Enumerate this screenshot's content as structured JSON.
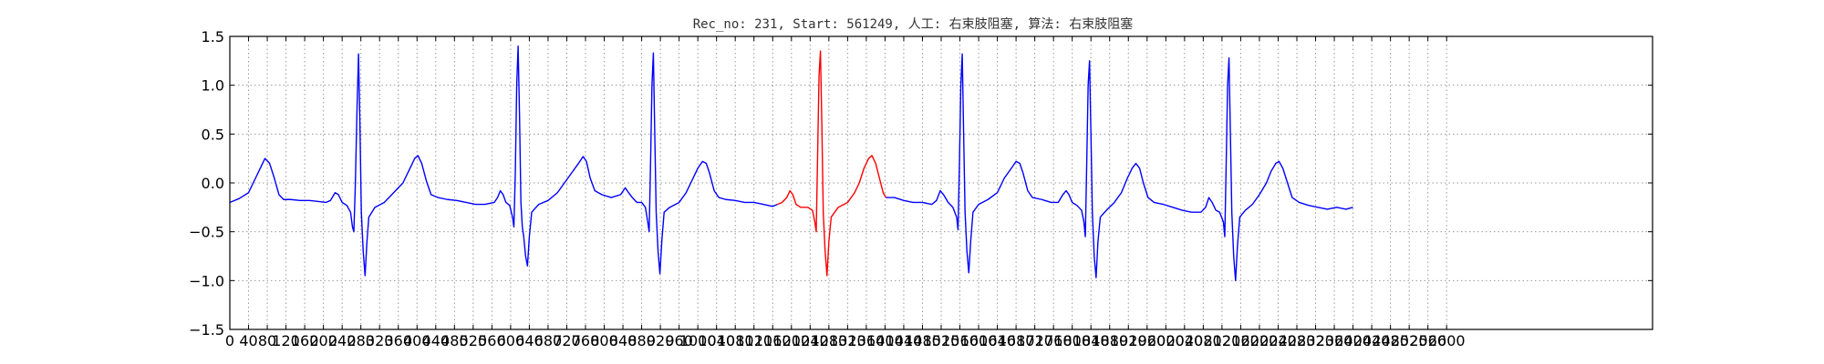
{
  "chart_data": {
    "type": "line",
    "title": "Rec_no: 231, Start: 561249, 人工: 右束肢阻塞, 算法: 右束肢阻塞",
    "xlabel": "",
    "ylabel": "",
    "xlim": [
      0,
      3040
    ],
    "ylim": [
      -1.5,
      1.5
    ],
    "grid": true,
    "x_ticks": [
      0,
      40,
      80,
      120,
      160,
      200,
      240,
      280,
      320,
      360,
      400,
      440,
      480,
      520,
      560,
      600,
      640,
      680,
      720,
      760,
      800,
      840,
      880,
      920,
      960,
      1000,
      1040,
      1080,
      1120,
      1160,
      1200,
      1240,
      1280,
      1320,
      1360,
      1400,
      1440,
      1480,
      1520,
      1560,
      1600,
      1640,
      1680,
      1720,
      1760,
      1800,
      1840,
      1880,
      1920,
      1960,
      2000,
      2040,
      2080,
      2120,
      2160,
      2200,
      2240,
      2280,
      2320,
      2360,
      2400,
      2440,
      2480,
      2520,
      2560,
      2600
    ],
    "y_ticks": [
      -1.5,
      -1.0,
      -0.5,
      0.0,
      0.5,
      1.0,
      1.5
    ],
    "y_tick_labels": [
      "−1.5",
      "−1.0",
      "−0.5",
      "0.0",
      "0.5",
      "1.0",
      "1.5"
    ],
    "series": [
      {
        "color": "#0000ff",
        "points": [
          [
            0,
            -0.2
          ],
          [
            20,
            -0.16
          ],
          [
            40,
            -0.1
          ],
          [
            55,
            0.05
          ],
          [
            65,
            0.15
          ],
          [
            75,
            0.25
          ],
          [
            85,
            0.2
          ],
          [
            95,
            0.05
          ],
          [
            105,
            -0.12
          ],
          [
            115,
            -0.17
          ],
          [
            130,
            -0.17
          ],
          [
            150,
            -0.18
          ],
          [
            170,
            -0.18
          ],
          [
            190,
            -0.19
          ],
          [
            205,
            -0.2
          ],
          [
            215,
            -0.18
          ],
          [
            225,
            -0.1
          ],
          [
            232,
            -0.12
          ],
          [
            240,
            -0.2
          ],
          [
            250,
            -0.23
          ],
          [
            258,
            -0.3
          ],
          [
            262,
            -0.45
          ],
          [
            265,
            -0.5
          ],
          [
            268,
            -0.05
          ],
          [
            272,
            0.8
          ],
          [
            275,
            1.32
          ],
          [
            278,
            0.6
          ],
          [
            281,
            -0.3
          ],
          [
            285,
            -0.7
          ],
          [
            289,
            -0.95
          ],
          [
            293,
            -0.6
          ],
          [
            297,
            -0.35
          ],
          [
            310,
            -0.25
          ],
          [
            330,
            -0.2
          ],
          [
            350,
            -0.1
          ],
          [
            370,
            0.0
          ],
          [
            385,
            0.15
          ],
          [
            395,
            0.25
          ],
          [
            402,
            0.28
          ],
          [
            410,
            0.2
          ],
          [
            420,
            0.02
          ],
          [
            430,
            -0.12
          ],
          [
            445,
            -0.15
          ],
          [
            465,
            -0.17
          ],
          [
            485,
            -0.18
          ],
          [
            505,
            -0.2
          ],
          [
            525,
            -0.22
          ],
          [
            545,
            -0.22
          ],
          [
            565,
            -0.2
          ],
          [
            572,
            -0.15
          ],
          [
            578,
            -0.08
          ],
          [
            584,
            -0.12
          ],
          [
            590,
            -0.2
          ],
          [
            598,
            -0.23
          ],
          [
            604,
            -0.35
          ],
          [
            607,
            -0.45
          ],
          [
            610,
            0.1
          ],
          [
            613,
            1.0
          ],
          [
            616,
            1.4
          ],
          [
            619,
            0.7
          ],
          [
            622,
            -0.2
          ],
          [
            625,
            -0.45
          ],
          [
            628,
            -0.55
          ],
          [
            632,
            -0.75
          ],
          [
            636,
            -0.85
          ],
          [
            640,
            -0.55
          ],
          [
            645,
            -0.3
          ],
          [
            660,
            -0.22
          ],
          [
            680,
            -0.18
          ],
          [
            700,
            -0.1
          ],
          [
            715,
            0.0
          ],
          [
            730,
            0.1
          ],
          [
            745,
            0.2
          ],
          [
            755,
            0.27
          ],
          [
            762,
            0.22
          ],
          [
            770,
            0.05
          ],
          [
            780,
            -0.08
          ],
          [
            795,
            -0.12
          ],
          [
            815,
            -0.15
          ],
          [
            835,
            -0.12
          ],
          [
            845,
            -0.05
          ],
          [
            852,
            -0.1
          ],
          [
            860,
            -0.15
          ],
          [
            870,
            -0.2
          ],
          [
            880,
            -0.2
          ],
          [
            888,
            -0.25
          ],
          [
            893,
            -0.4
          ],
          [
            896,
            -0.5
          ],
          [
            899,
            0.2
          ],
          [
            902,
            1.0
          ],
          [
            905,
            1.33
          ],
          [
            908,
            0.5
          ],
          [
            911,
            -0.3
          ],
          [
            915,
            -0.7
          ],
          [
            919,
            -0.93
          ],
          [
            923,
            -0.6
          ],
          [
            928,
            -0.3
          ],
          [
            940,
            -0.25
          ],
          [
            960,
            -0.2
          ],
          [
            975,
            -0.1
          ],
          [
            990,
            0.05
          ],
          [
            1000,
            0.15
          ],
          [
            1010,
            0.22
          ],
          [
            1018,
            0.2
          ],
          [
            1025,
            0.1
          ],
          [
            1035,
            -0.08
          ],
          [
            1045,
            -0.15
          ],
          [
            1060,
            -0.17
          ],
          [
            1080,
            -0.18
          ],
          [
            1100,
            -0.2
          ],
          [
            1120,
            -0.2
          ],
          [
            1140,
            -0.22
          ],
          [
            1160,
            -0.24
          ],
          [
            1170,
            -0.22
          ]
        ]
      },
      {
        "color": "#ff0000",
        "points": [
          [
            1170,
            -0.22
          ],
          [
            1180,
            -0.2
          ],
          [
            1190,
            -0.15
          ],
          [
            1197,
            -0.08
          ],
          [
            1203,
            -0.12
          ],
          [
            1210,
            -0.22
          ],
          [
            1220,
            -0.25
          ],
          [
            1235,
            -0.25
          ],
          [
            1245,
            -0.28
          ],
          [
            1250,
            -0.4
          ],
          [
            1253,
            -0.5
          ],
          [
            1256,
            0.3
          ],
          [
            1259,
            1.1
          ],
          [
            1262,
            1.35
          ],
          [
            1265,
            0.6
          ],
          [
            1268,
            -0.3
          ],
          [
            1272,
            -0.7
          ],
          [
            1276,
            -0.95
          ],
          [
            1280,
            -0.6
          ],
          [
            1285,
            -0.35
          ],
          [
            1300,
            -0.25
          ],
          [
            1320,
            -0.2
          ],
          [
            1335,
            -0.1
          ],
          [
            1345,
            0.0
          ],
          [
            1355,
            0.15
          ],
          [
            1365,
            0.25
          ],
          [
            1372,
            0.28
          ],
          [
            1380,
            0.2
          ],
          [
            1388,
            0.05
          ],
          [
            1396,
            -0.1
          ],
          [
            1402,
            -0.15
          ]
        ]
      },
      {
        "color": "#0000ff",
        "points": [
          [
            1402,
            -0.15
          ],
          [
            1420,
            -0.15
          ],
          [
            1440,
            -0.18
          ],
          [
            1460,
            -0.2
          ],
          [
            1480,
            -0.2
          ],
          [
            1500,
            -0.22
          ],
          [
            1510,
            -0.18
          ],
          [
            1518,
            -0.08
          ],
          [
            1525,
            -0.12
          ],
          [
            1535,
            -0.2
          ],
          [
            1545,
            -0.25
          ],
          [
            1553,
            -0.35
          ],
          [
            1556,
            -0.48
          ],
          [
            1559,
            0.2
          ],
          [
            1562,
            1.0
          ],
          [
            1565,
            1.32
          ],
          [
            1568,
            0.5
          ],
          [
            1571,
            -0.3
          ],
          [
            1575,
            -0.7
          ],
          [
            1579,
            -0.92
          ],
          [
            1583,
            -0.6
          ],
          [
            1588,
            -0.3
          ],
          [
            1600,
            -0.22
          ],
          [
            1620,
            -0.17
          ],
          [
            1640,
            -0.1
          ],
          [
            1655,
            0.05
          ],
          [
            1670,
            0.15
          ],
          [
            1680,
            0.22
          ],
          [
            1688,
            0.2
          ],
          [
            1695,
            0.1
          ],
          [
            1705,
            -0.08
          ],
          [
            1715,
            -0.15
          ],
          [
            1735,
            -0.17
          ],
          [
            1755,
            -0.2
          ],
          [
            1770,
            -0.2
          ],
          [
            1780,
            -0.12
          ],
          [
            1787,
            -0.08
          ],
          [
            1793,
            -0.12
          ],
          [
            1800,
            -0.2
          ],
          [
            1810,
            -0.23
          ],
          [
            1820,
            -0.28
          ],
          [
            1825,
            -0.4
          ],
          [
            1828,
            -0.55
          ],
          [
            1831,
            0.2
          ],
          [
            1834,
            1.0
          ],
          [
            1837,
            1.25
          ],
          [
            1840,
            0.5
          ],
          [
            1843,
            -0.3
          ],
          [
            1847,
            -0.75
          ],
          [
            1851,
            -0.97
          ],
          [
            1855,
            -0.6
          ],
          [
            1860,
            -0.35
          ],
          [
            1875,
            -0.27
          ],
          [
            1890,
            -0.2
          ],
          [
            1905,
            -0.1
          ],
          [
            1918,
            0.05
          ],
          [
            1928,
            0.15
          ],
          [
            1936,
            0.2
          ],
          [
            1944,
            0.15
          ],
          [
            1952,
            0.0
          ],
          [
            1962,
            -0.15
          ],
          [
            1975,
            -0.2
          ],
          [
            1995,
            -0.22
          ],
          [
            2015,
            -0.25
          ],
          [
            2035,
            -0.28
          ],
          [
            2055,
            -0.3
          ],
          [
            2075,
            -0.3
          ],
          [
            2085,
            -0.25
          ],
          [
            2092,
            -0.15
          ],
          [
            2099,
            -0.2
          ],
          [
            2107,
            -0.28
          ],
          [
            2115,
            -0.3
          ],
          [
            2123,
            -0.4
          ],
          [
            2126,
            -0.55
          ],
          [
            2129,
            0.2
          ],
          [
            2132,
            1.0
          ],
          [
            2135,
            1.28
          ],
          [
            2138,
            0.5
          ],
          [
            2141,
            -0.3
          ],
          [
            2145,
            -0.75
          ],
          [
            2149,
            -1.0
          ],
          [
            2153,
            -0.65
          ],
          [
            2158,
            -0.35
          ],
          [
            2170,
            -0.28
          ],
          [
            2185,
            -0.22
          ],
          [
            2200,
            -0.12
          ],
          [
            2215,
            0.0
          ],
          [
            2225,
            0.12
          ],
          [
            2235,
            0.2
          ],
          [
            2242,
            0.22
          ],
          [
            2250,
            0.15
          ],
          [
            2260,
            0.0
          ],
          [
            2270,
            -0.15
          ],
          [
            2285,
            -0.2
          ],
          [
            2305,
            -0.23
          ],
          [
            2325,
            -0.25
          ],
          [
            2345,
            -0.27
          ],
          [
            2365,
            -0.25
          ],
          [
            2385,
            -0.27
          ],
          [
            2400,
            -0.25
          ]
        ]
      }
    ]
  }
}
